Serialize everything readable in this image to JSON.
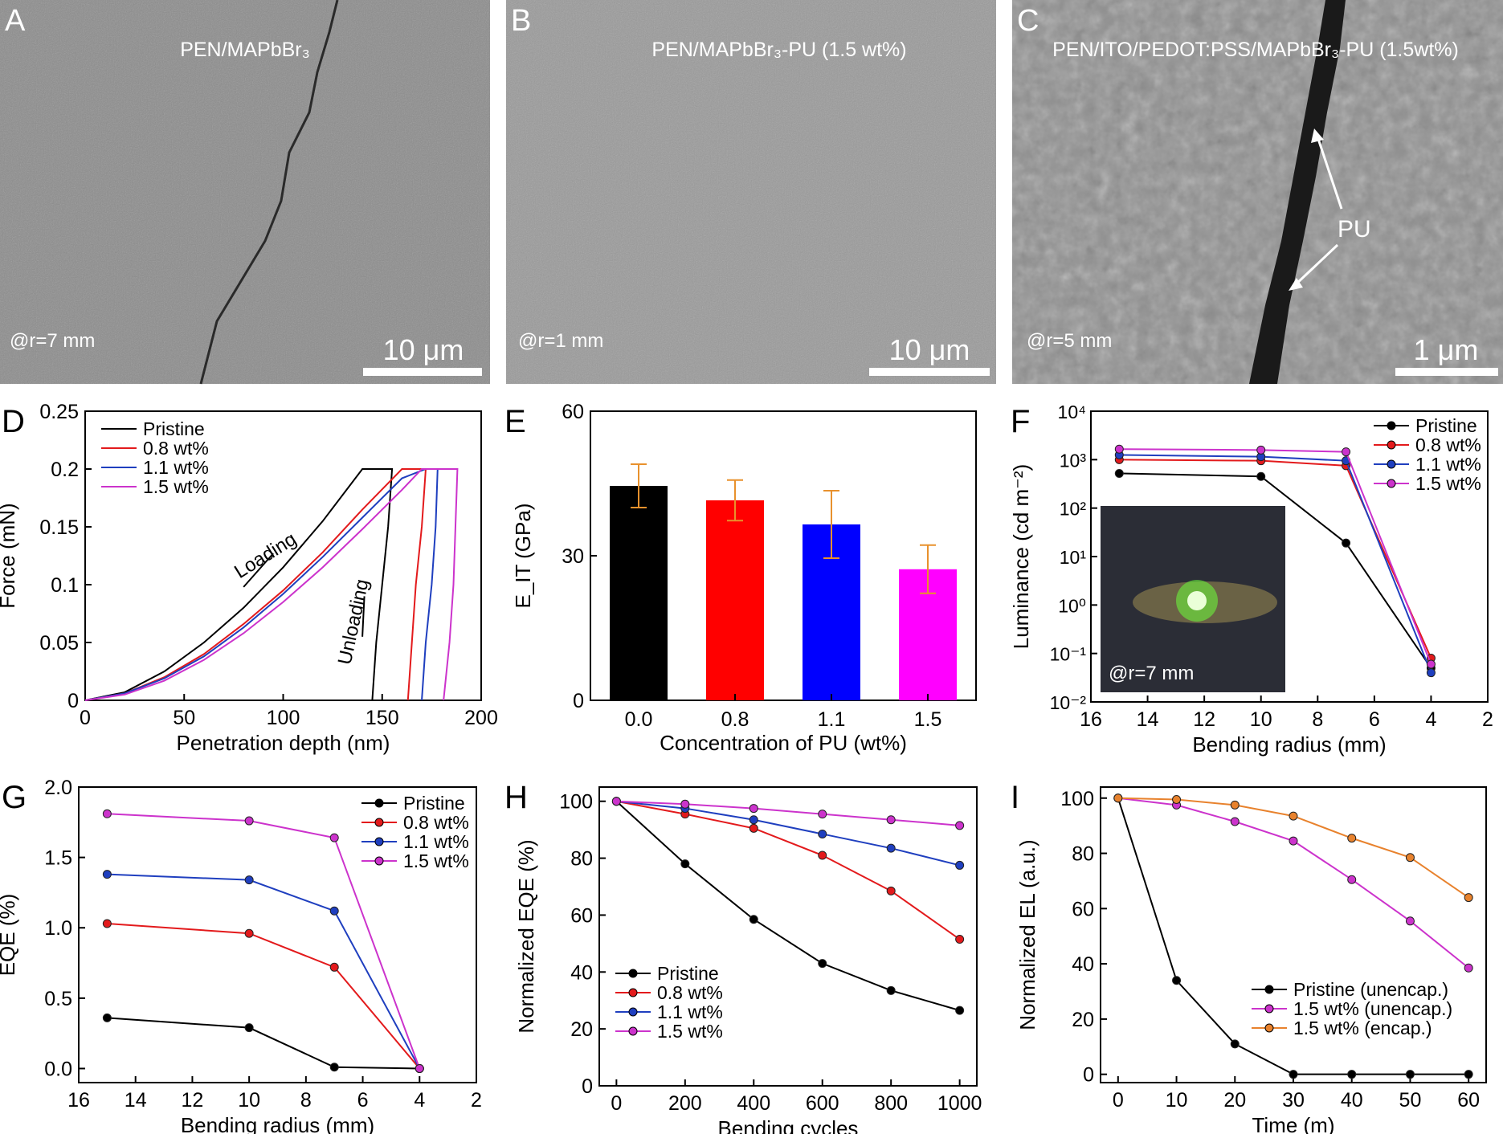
{
  "sem": [
    {
      "letter": "A",
      "title": "PEN/MAPbBr₃",
      "radius": "@r=7 mm",
      "scale": "10 μm",
      "tone": "#8c8c8c"
    },
    {
      "letter": "B",
      "title": "PEN/MAPbBr₃-PU (1.5 wt%)",
      "radius": "@r=1 mm",
      "scale": "10 μm",
      "tone": "#9a9a9a"
    },
    {
      "letter": "C",
      "title": "PEN/ITO/PEDOT:PSS/MAPbBr₃-PU (1.5wt%)",
      "radius": "@r=5 mm",
      "scale": "1 μm",
      "tone": "#8f8f8f",
      "annotation": "PU"
    }
  ],
  "chart_data": [
    {
      "panel": "D",
      "type": "line",
      "xlabel": "Penetration depth (nm)",
      "ylabel": "Force (mN)",
      "xlim": [
        0,
        200
      ],
      "ylim": [
        0,
        0.25
      ],
      "xticks": [
        "0",
        "50",
        "100",
        "150",
        "200"
      ],
      "yticks": [
        "0",
        "0.05",
        "0.1",
        "0.15",
        "0.2",
        "0.25"
      ],
      "legend": [
        "Pristine",
        "0.8 wt%",
        "1.1 wt%",
        "1.5 wt%"
      ],
      "annotations": [
        "Loading",
        "Unloading"
      ],
      "colors": [
        "#000000",
        "#e31a1c",
        "#1f3fbf",
        "#cc33cc"
      ],
      "series": [
        {
          "name": "Pristine",
          "max_depth": 155,
          "load_x": [
            0,
            20,
            40,
            60,
            80,
            100,
            120,
            140
          ],
          "load_y": [
            0,
            0.007,
            0.025,
            0.05,
            0.08,
            0.115,
            0.155,
            0.2
          ],
          "unload_x": [
            155,
            153,
            150,
            147,
            145
          ],
          "unload_y": [
            0.2,
            0.15,
            0.1,
            0.05,
            0
          ]
        },
        {
          "name": "0.8 wt%",
          "max_depth": 172,
          "load_x": [
            0,
            20,
            40,
            60,
            80,
            100,
            120,
            140,
            160
          ],
          "load_y": [
            0,
            0.006,
            0.02,
            0.04,
            0.066,
            0.095,
            0.128,
            0.165,
            0.2
          ],
          "unload_x": [
            172,
            170,
            167,
            165,
            163
          ],
          "unload_y": [
            0.2,
            0.15,
            0.1,
            0.05,
            0
          ]
        },
        {
          "name": "1.1 wt%",
          "max_depth": 178,
          "load_x": [
            0,
            20,
            40,
            60,
            80,
            100,
            120,
            140,
            160,
            172
          ],
          "load_y": [
            0,
            0.006,
            0.019,
            0.038,
            0.063,
            0.092,
            0.124,
            0.158,
            0.192,
            0.2
          ],
          "unload_x": [
            178,
            177,
            175,
            172,
            170
          ],
          "unload_y": [
            0.2,
            0.15,
            0.1,
            0.05,
            0
          ]
        },
        {
          "name": "1.5 wt%",
          "max_depth": 188,
          "load_x": [
            0,
            20,
            40,
            60,
            80,
            100,
            120,
            140,
            160,
            170
          ],
          "load_y": [
            0,
            0.005,
            0.017,
            0.035,
            0.058,
            0.085,
            0.115,
            0.148,
            0.182,
            0.2
          ],
          "unload_x": [
            188,
            187,
            186,
            184,
            181
          ],
          "unload_y": [
            0.2,
            0.15,
            0.1,
            0.05,
            0
          ]
        }
      ]
    },
    {
      "panel": "E",
      "type": "bar",
      "xlabel": "Concentration of PU (wt%)",
      "ylabel": "E_IT (GPa)",
      "ylim": [
        0,
        60
      ],
      "yticks": [
        "0",
        "30",
        "60"
      ],
      "categories": [
        "0.0",
        "0.8",
        "1.1",
        "1.5"
      ],
      "values": [
        44.5,
        41.5,
        36.5,
        27.2
      ],
      "errors": [
        4.5,
        4.2,
        7.0,
        5.0
      ],
      "colors": [
        "#000000",
        "#ff0000",
        "#0000ff",
        "#ff00ff"
      ],
      "error_color": "#e8912d"
    },
    {
      "panel": "F",
      "type": "line",
      "xlabel": "Bending radius (mm)",
      "ylabel": "Luminance (cd m⁻²)",
      "xlim": [
        16,
        2
      ],
      "ylim_log": [
        -2,
        4
      ],
      "xticks": [
        "16",
        "14",
        "12",
        "10",
        "8",
        "6",
        "4",
        "2"
      ],
      "yticks": [
        "10⁻²",
        "10⁻¹",
        "10⁰",
        "10¹",
        "10²",
        "10³",
        "10⁴"
      ],
      "inset_label": "@r=7 mm",
      "colors": [
        "#000000",
        "#e31a1c",
        "#1f3fbf",
        "#cc33cc"
      ],
      "x": [
        15,
        10,
        7,
        4
      ],
      "series": [
        {
          "name": "Pristine",
          "values": [
            520,
            450,
            19,
            0.05
          ]
        },
        {
          "name": "0.8 wt%",
          "values": [
            1000,
            950,
            750,
            0.08
          ]
        },
        {
          "name": "1.1 wt%",
          "values": [
            1250,
            1150,
            950,
            0.04
          ]
        },
        {
          "name": "1.5 wt%",
          "values": [
            1650,
            1580,
            1450,
            0.06
          ]
        }
      ]
    },
    {
      "panel": "G",
      "type": "line",
      "xlabel": "Bending radius (mm)",
      "ylabel": "EQE (%)",
      "xlim": [
        16,
        2
      ],
      "ylim": [
        -0.1,
        2.0
      ],
      "xticks": [
        "16",
        "14",
        "12",
        "10",
        "8",
        "6",
        "4",
        "2"
      ],
      "yticks": [
        "0.0",
        "0.5",
        "1.0",
        "1.5",
        "2.0"
      ],
      "colors": [
        "#000000",
        "#e31a1c",
        "#1f3fbf",
        "#cc33cc"
      ],
      "x": [
        15,
        10,
        7,
        4
      ],
      "series": [
        {
          "name": "Pristine",
          "values": [
            0.36,
            0.29,
            0.01,
            0.0
          ]
        },
        {
          "name": "0.8 wt%",
          "values": [
            1.03,
            0.96,
            0.72,
            0.0
          ]
        },
        {
          "name": "1.1 wt%",
          "values": [
            1.38,
            1.34,
            1.12,
            0.0
          ]
        },
        {
          "name": "1.5 wt%",
          "values": [
            1.81,
            1.76,
            1.64,
            0.0
          ]
        }
      ]
    },
    {
      "panel": "H",
      "type": "line",
      "xlabel": "Bending cycles",
      "ylabel": "Normalized EQE (%)",
      "xlim": [
        -50,
        1050
      ],
      "ylim": [
        0,
        105
      ],
      "xticks": [
        "0",
        "200",
        "400",
        "600",
        "800",
        "1000"
      ],
      "yticks": [
        "0",
        "20",
        "40",
        "60",
        "80",
        "100"
      ],
      "colors": [
        "#000000",
        "#e31a1c",
        "#1f3fbf",
        "#cc33cc"
      ],
      "x": [
        0,
        200,
        400,
        600,
        800,
        1000
      ],
      "series": [
        {
          "name": "Pristine",
          "values": [
            100,
            78,
            58.5,
            43,
            33.5,
            26.5
          ]
        },
        {
          "name": "0.8 wt%",
          "values": [
            100,
            95.5,
            90.5,
            81,
            68.5,
            51.5
          ]
        },
        {
          "name": "1.1 wt%",
          "values": [
            100,
            97.5,
            93.5,
            88.5,
            83.5,
            77.5
          ]
        },
        {
          "name": "1.5 wt%",
          "values": [
            100,
            99,
            97.5,
            95.5,
            93.5,
            91.5
          ]
        }
      ]
    },
    {
      "panel": "I",
      "type": "line",
      "xlabel": "Time (m)",
      "ylabel": "Normalized EL (a.u.)",
      "xlim": [
        -3,
        63
      ],
      "ylim": [
        -3,
        104
      ],
      "xticks": [
        "0",
        "10",
        "20",
        "30",
        "40",
        "50",
        "60"
      ],
      "yticks": [
        "0",
        "20",
        "40",
        "60",
        "80",
        "100"
      ],
      "colors": [
        "#000000",
        "#cc33cc",
        "#e8822d"
      ],
      "x": [
        0,
        10,
        20,
        30,
        40,
        50,
        60
      ],
      "series": [
        {
          "name": "Pristine (unencap.)",
          "values": [
            100,
            34,
            11,
            0,
            0,
            0,
            0
          ]
        },
        {
          "name": "1.5 wt% (unencap.)",
          "values": [
            100,
            97.5,
            91.5,
            84.5,
            70.5,
            55.5,
            38.5
          ]
        },
        {
          "name": "1.5 wt% (encap.)",
          "values": [
            100,
            99.5,
            97.5,
            93.5,
            85.5,
            78.5,
            64
          ]
        }
      ]
    }
  ]
}
